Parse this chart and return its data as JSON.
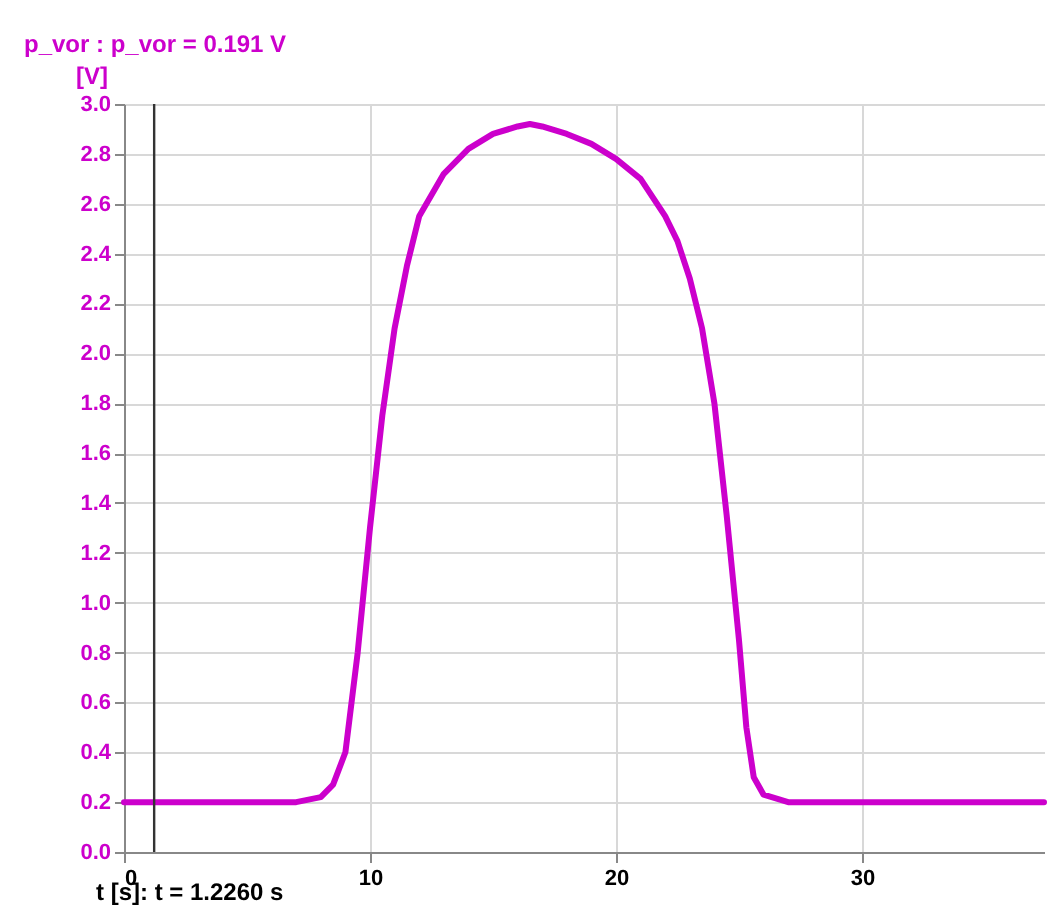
{
  "chart_data": {
    "type": "line",
    "title": "p_vor :  p_vor = 0.191 V",
    "ylabel": "[V]",
    "xlabel": "t [s]: t = 1.2260 s",
    "x": [
      0,
      7,
      8,
      8.5,
      9,
      9.5,
      10,
      10.5,
      11,
      11.5,
      12,
      13,
      14,
      15,
      16,
      16.5,
      17,
      18,
      19,
      20,
      21,
      22,
      22.5,
      23,
      23.5,
      24,
      24.5,
      25,
      25.3,
      25.6,
      26,
      27,
      37.4
    ],
    "series": [
      {
        "color": "#cc00cc",
        "values": [
          0.2,
          0.2,
          0.22,
          0.27,
          0.4,
          0.8,
          1.3,
          1.75,
          2.1,
          2.35,
          2.55,
          2.72,
          2.82,
          2.88,
          2.91,
          2.92,
          2.91,
          2.88,
          2.84,
          2.78,
          2.7,
          2.55,
          2.45,
          2.3,
          2.1,
          1.8,
          1.35,
          0.85,
          0.5,
          0.3,
          0.23,
          0.2,
          0.2
        ]
      }
    ],
    "xlim": [
      0,
      37.4
    ],
    "xticks": [
      0,
      10,
      20,
      30
    ],
    "ylim": [
      0,
      3.0
    ],
    "yticks": [
      {
        "value": 0,
        "label": "0.0"
      },
      0.2,
      0.4,
      0.6,
      0.8,
      {
        "value": 1,
        "label": "1.0"
      },
      1.2,
      1.4,
      1.6,
      1.8,
      {
        "value": 2,
        "label": "2.0"
      },
      2.2,
      2.4,
      2.6,
      2.8,
      {
        "value": 3,
        "label": "3.0"
      }
    ],
    "grid": true,
    "ref_lines": [
      {
        "axis": "x",
        "value": 1.226,
        "color": "#333333"
      }
    ]
  }
}
